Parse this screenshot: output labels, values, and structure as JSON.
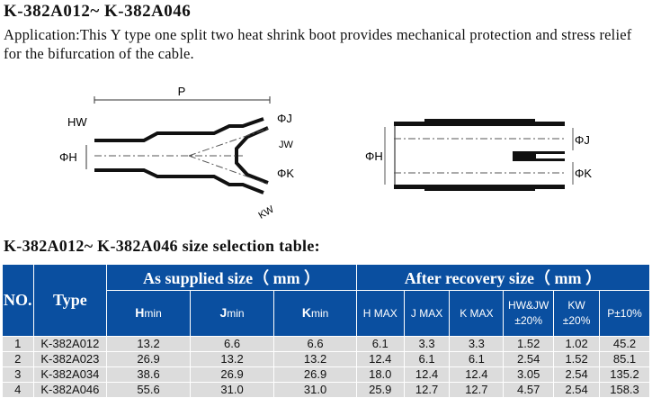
{
  "title": "K-382A012~ K-382A046",
  "application": "Application:This Y type one split two heat shrink boot provides mechanical protection and  stress relief for the bifurcation of the cable.",
  "diagram_labels": {
    "P": "P",
    "HW": "HW",
    "H": "ΦH",
    "J": "ΦJ",
    "JW": "JW",
    "K": "ΦK",
    "KW": "KW"
  },
  "table_title": "K-382A012~ K-382A046 size selection  table:",
  "table": {
    "no": "NO.",
    "type": "Type",
    "supplied": "As supplied size（ mm ）",
    "recovery": "After recovery size（ mm ）",
    "sub": [
      {
        "b": "H",
        "t": "min"
      },
      {
        "b": "J",
        "t": "min"
      },
      {
        "b": "K",
        "t": "min"
      }
    ],
    "rec": [
      "H MAX",
      "J MAX",
      "K MAX",
      "HW&JW ±20%",
      "KW ±20%",
      "P±10%"
    ],
    "rows": [
      [
        "1",
        "K-382A012",
        "13.2",
        "6.6",
        "6.6",
        "6.1",
        "3.3",
        "3.3",
        "1.52",
        "1.02",
        "45.2"
      ],
      [
        "2",
        "K-382A023",
        "26.9",
        "13.2",
        "13.2",
        "12.4",
        "6.1",
        "6.1",
        "2.54",
        "1.52",
        "85.1"
      ],
      [
        "3",
        "K-382A034",
        "38.6",
        "26.9",
        "26.9",
        "18.0",
        "12.4",
        "12.4",
        "3.05",
        "2.54",
        "135.2"
      ],
      [
        "4",
        "K-382A046",
        "55.6",
        "31.0",
        "31.0",
        "25.9",
        "12.7",
        "12.7",
        "4.57",
        "2.54",
        "158.3"
      ]
    ]
  },
  "colors": {
    "header": "#0a4fa0",
    "row": "#dcdcdc"
  }
}
